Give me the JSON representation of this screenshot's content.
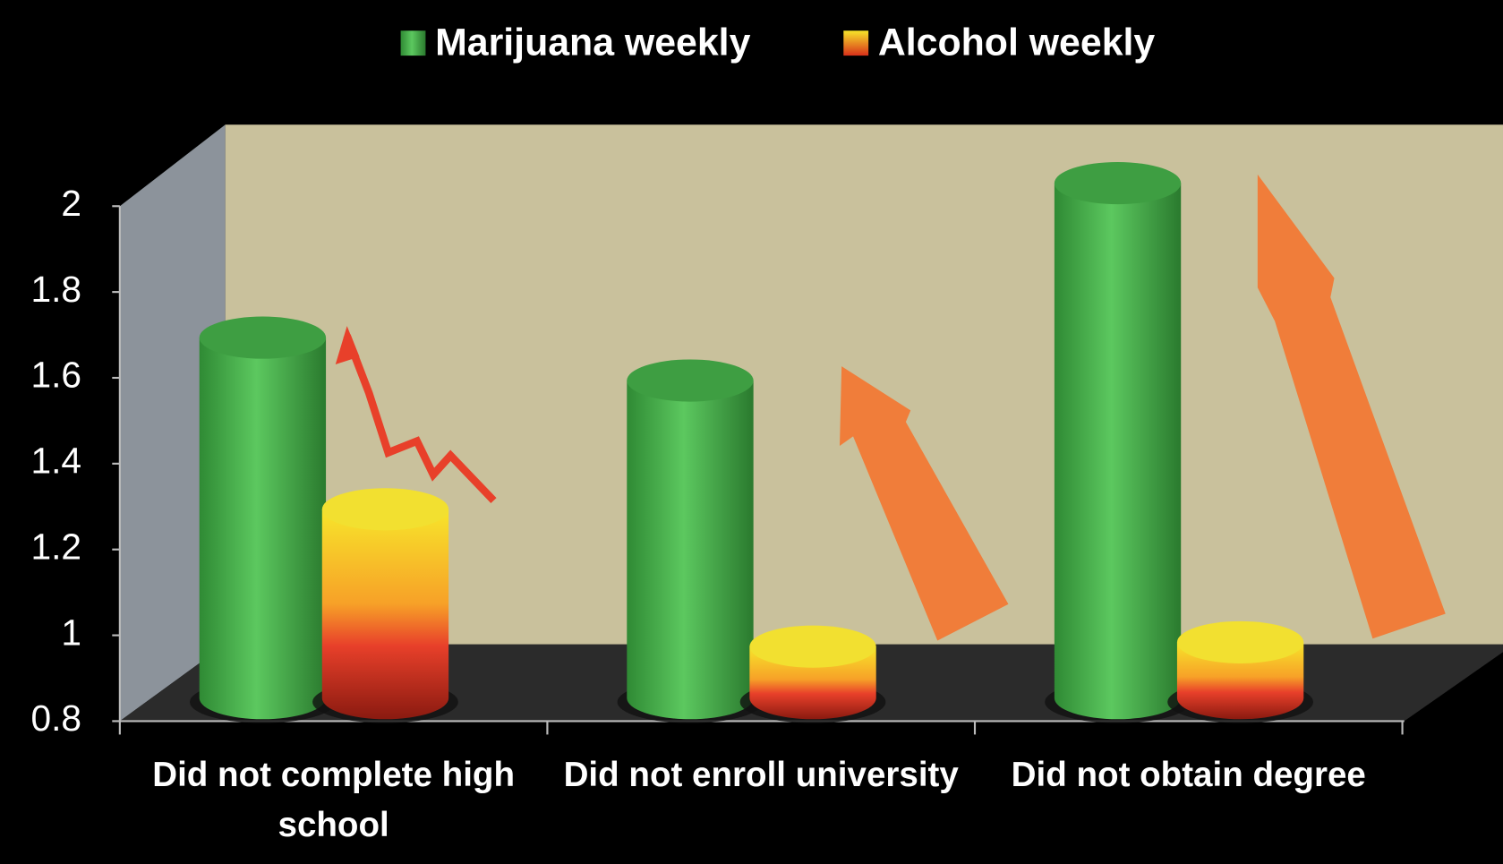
{
  "chart_data": {
    "type": "bar3d",
    "categories": [
      "Did not complete high school",
      "Did not enroll university",
      "Did not obtain degree"
    ],
    "series": [
      {
        "name": "Marijuana weekly",
        "color": "#4caf50",
        "values": [
          1.64,
          1.54,
          2.0
        ]
      },
      {
        "name": "Alcohol weekly",
        "color": "#f5a623",
        "values": [
          1.24,
          0.92,
          0.93
        ]
      }
    ],
    "ylim": [
      0.8,
      2
    ],
    "yticks": [
      0.8,
      1,
      1.2,
      1.4,
      1.6,
      1.8,
      2
    ]
  }
}
